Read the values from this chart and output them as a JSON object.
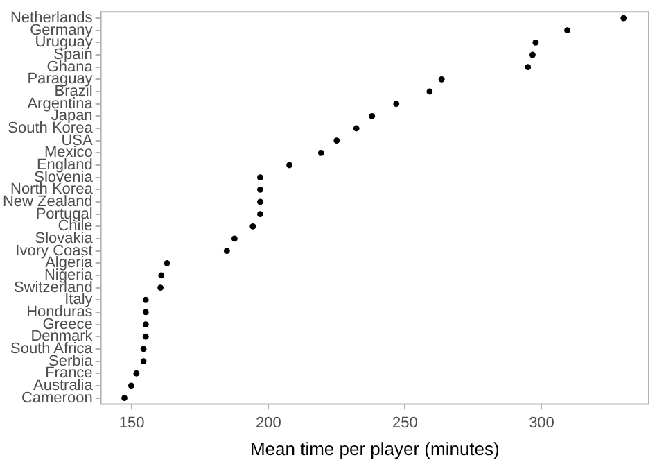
{
  "chart_data": {
    "type": "scatter",
    "orientation": "horizontal",
    "xlabel": "Mean time per player (minutes)",
    "categories": [
      "Netherlands",
      "Germany",
      "Uruguay",
      "Spain",
      "Ghana",
      "Paraguay",
      "Brazil",
      "Argentina",
      "Japan",
      "South Korea",
      "USA",
      "Mexico",
      "England",
      "Slovenia",
      "North Korea",
      "New Zealand",
      "Portugal",
      "Chile",
      "Slovakia",
      "Ivory Coast",
      "Algeria",
      "Nigeria",
      "Switzerland",
      "Italy",
      "Honduras",
      "Greece",
      "Denmark",
      "South Africa",
      "Serbia",
      "France",
      "Australia",
      "Cameroon"
    ],
    "values": [
      330,
      309.4,
      297.8,
      296.7,
      295,
      263.4,
      259,
      246.8,
      237.9,
      232.2,
      225,
      219.3,
      207.7,
      197,
      197,
      197,
      197,
      194.3,
      187.6,
      184.8,
      162.9,
      160.8,
      160.5,
      155.1,
      155.1,
      155.1,
      155.1,
      154.3,
      154.3,
      151.7,
      149.8,
      147.3
    ],
    "color": "#000000",
    "marker": "circle",
    "grid": false,
    "xlim": [
      138.7,
      339.2
    ],
    "xticks": [
      150,
      200,
      250,
      300
    ]
  }
}
